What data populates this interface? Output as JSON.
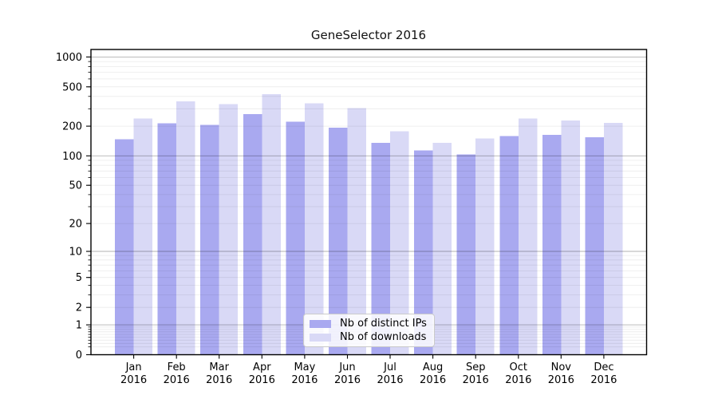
{
  "chart_data": {
    "type": "bar",
    "title": "GeneSelector 2016",
    "categories": [
      "Jan",
      "Feb",
      "Mar",
      "Apr",
      "May",
      "Jun",
      "Jul",
      "Aug",
      "Sep",
      "Oct",
      "Nov",
      "Dec"
    ],
    "x_tick_year": "2016",
    "series": [
      {
        "name": "Nb of distinct IPs",
        "color": "#a9a9f0",
        "values": [
          148,
          213,
          206,
          266,
          222,
          193,
          136,
          113,
          103,
          158,
          163,
          155
        ]
      },
      {
        "name": "Nb of downloads",
        "color": "#d9d9f6",
        "values": [
          240,
          355,
          335,
          420,
          340,
          305,
          178,
          135,
          150,
          240,
          228,
          215
        ]
      }
    ],
    "y_ticks": [
      0,
      1,
      2,
      5,
      10,
      20,
      50,
      100,
      200,
      500,
      1000
    ],
    "y_scale": "log1p",
    "ylim": [
      0,
      1190
    ],
    "grid": true,
    "grid_major_values": [
      1,
      10,
      100,
      1000
    ],
    "legend_position": "lower-center-inside",
    "axis_color": "#000000",
    "background": "#ffffff"
  }
}
